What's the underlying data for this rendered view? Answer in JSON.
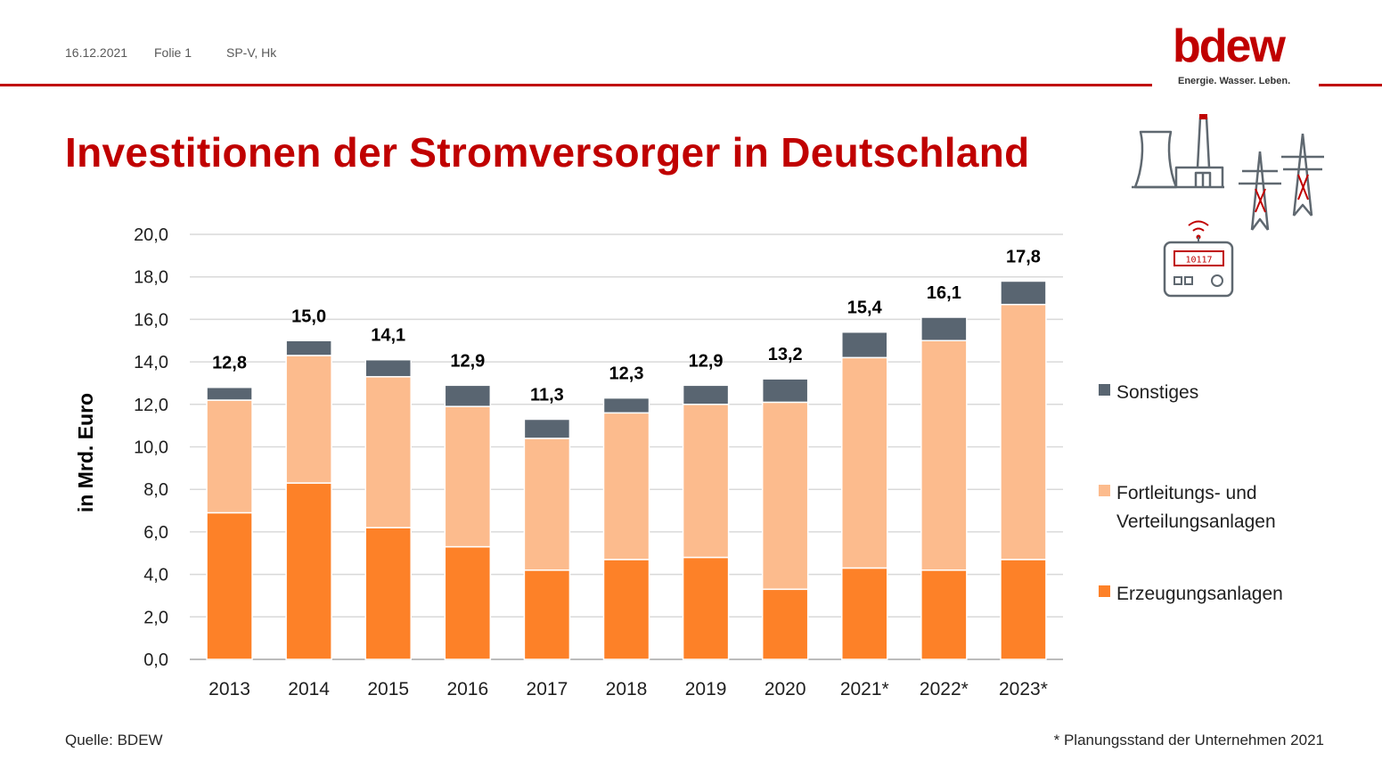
{
  "header": {
    "date": "16.12.2021",
    "slide": "Folie 1",
    "author": "SP-V, Hk"
  },
  "logo": {
    "wordmark": "bdew",
    "tagline": "Energie. Wasser. Leben."
  },
  "title": "Investitionen der Stromversorger in Deutschland",
  "colors": {
    "brand": "#c00000",
    "erzeugung": "#fd8128",
    "fortleitung": "#fcbb8d",
    "sonstiges": "#596571"
  },
  "icons": [
    "power-plant-icon",
    "transmission-tower-icon",
    "smart-meter-icon"
  ],
  "meter_display": "10117",
  "chart_data": {
    "type": "bar",
    "stacked": true,
    "categories": [
      "2013",
      "2014",
      "2015",
      "2016",
      "2017",
      "2018",
      "2019",
      "2020",
      "2021*",
      "2022*",
      "2023*"
    ],
    "series": [
      {
        "name": "Erzeugungsanlagen",
        "values": [
          6.9,
          8.3,
          6.2,
          5.3,
          4.2,
          4.7,
          4.8,
          3.3,
          4.3,
          4.2,
          4.7
        ]
      },
      {
        "name": "Fortleitungs- und Verteilungsanlagen",
        "values": [
          5.3,
          6.0,
          7.1,
          6.6,
          6.2,
          6.9,
          7.2,
          8.8,
          9.9,
          10.8,
          12.0
        ]
      },
      {
        "name": "Sonstiges",
        "values": [
          0.6,
          0.7,
          0.8,
          1.0,
          0.9,
          0.7,
          0.9,
          1.1,
          1.2,
          1.1,
          1.1
        ]
      }
    ],
    "totals": [
      "12,8",
      "15,0",
      "14,1",
      "12,9",
      "11,3",
      "12,3",
      "12,9",
      "13,2",
      "15,4",
      "16,1",
      "17,8"
    ],
    "ylabel": "in Mrd. Euro",
    "ylim": [
      0,
      20
    ],
    "yticks": [
      "0,0",
      "2,0",
      "4,0",
      "6,0",
      "8,0",
      "10,0",
      "12,0",
      "14,0",
      "16,0",
      "18,0",
      "20,0"
    ],
    "grid": true,
    "legend_position": "right"
  },
  "footer": {
    "source": "Quelle: BDEW",
    "note": "* Planungsstand der Unternehmen 2021"
  }
}
